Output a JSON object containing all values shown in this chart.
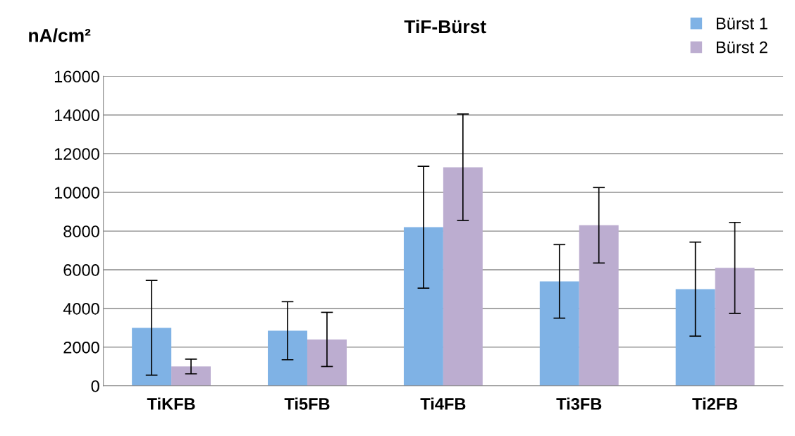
{
  "chart_data": {
    "type": "bar",
    "title": "TiF-Bürst",
    "ylabel": "nA/cm²",
    "categories": [
      "TiKFB",
      "Ti5FB",
      "Ti4FB",
      "Ti3FB",
      "Ti2FB"
    ],
    "series": [
      {
        "name": "Bürst 1",
        "color": "#7fb2e5",
        "values": [
          3000,
          2850,
          8200,
          5400,
          5000
        ],
        "errors": [
          2450,
          1500,
          3150,
          1900,
          2430
        ]
      },
      {
        "name": "Bürst 2",
        "color": "#bcadd0",
        "values": [
          1000,
          2400,
          11300,
          8300,
          6100
        ],
        "errors": [
          380,
          1400,
          2750,
          1950,
          2350
        ]
      }
    ],
    "ylim": [
      0,
      16000
    ],
    "yticks": [
      0,
      2000,
      4000,
      6000,
      8000,
      10000,
      12000,
      14000,
      16000
    ],
    "grid": "y",
    "legend": "top right"
  }
}
